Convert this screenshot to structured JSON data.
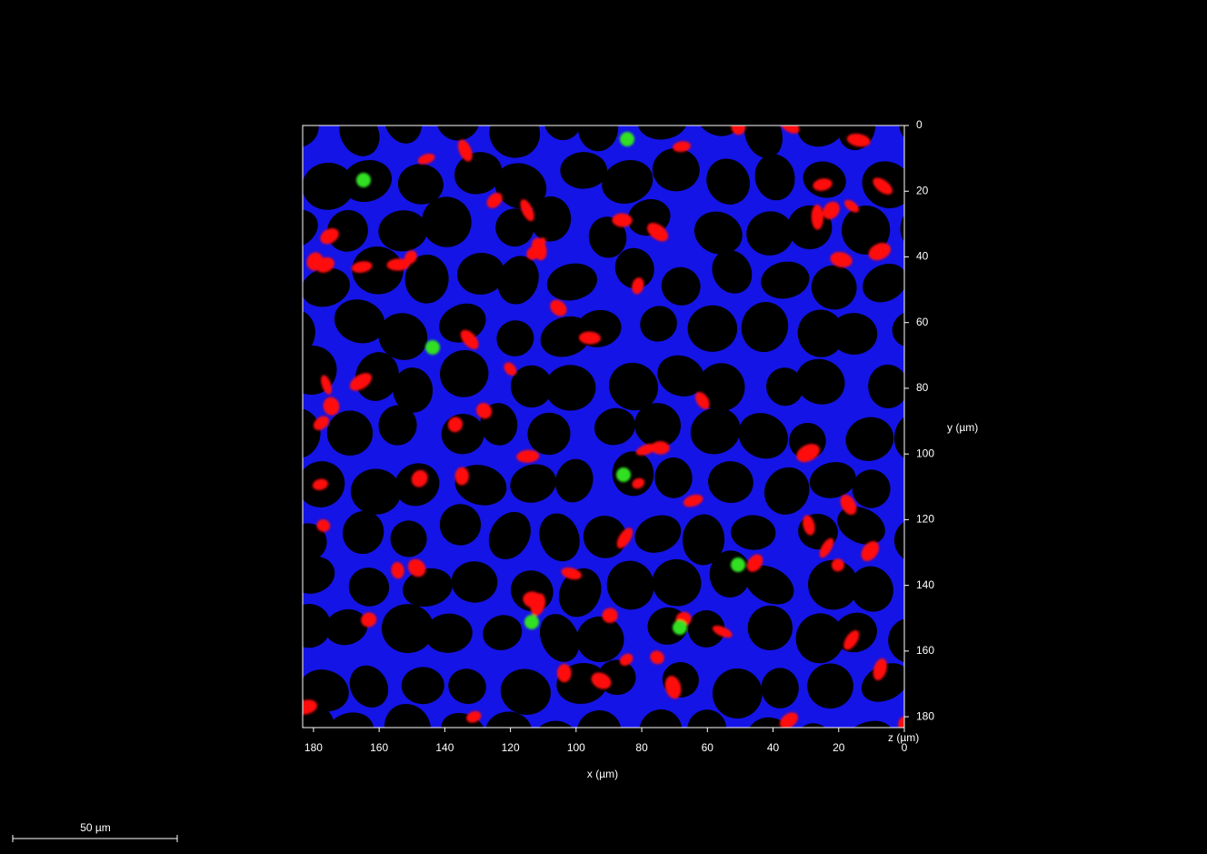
{
  "viewer": {
    "x_axis": {
      "label": "x (µm)",
      "lim": [
        183.3,
        0
      ],
      "ticks": [
        180,
        160,
        140,
        120,
        100,
        80,
        60,
        40,
        20,
        0
      ]
    },
    "y_axis": {
      "label": "y (µm)",
      "lim": [
        0,
        183.3
      ],
      "ticks": [
        0,
        20,
        40,
        60,
        80,
        100,
        120,
        140,
        160,
        180
      ]
    },
    "z_axis": {
      "label": "z (µm)"
    },
    "scale_bar": {
      "label": "50 µm"
    }
  }
}
